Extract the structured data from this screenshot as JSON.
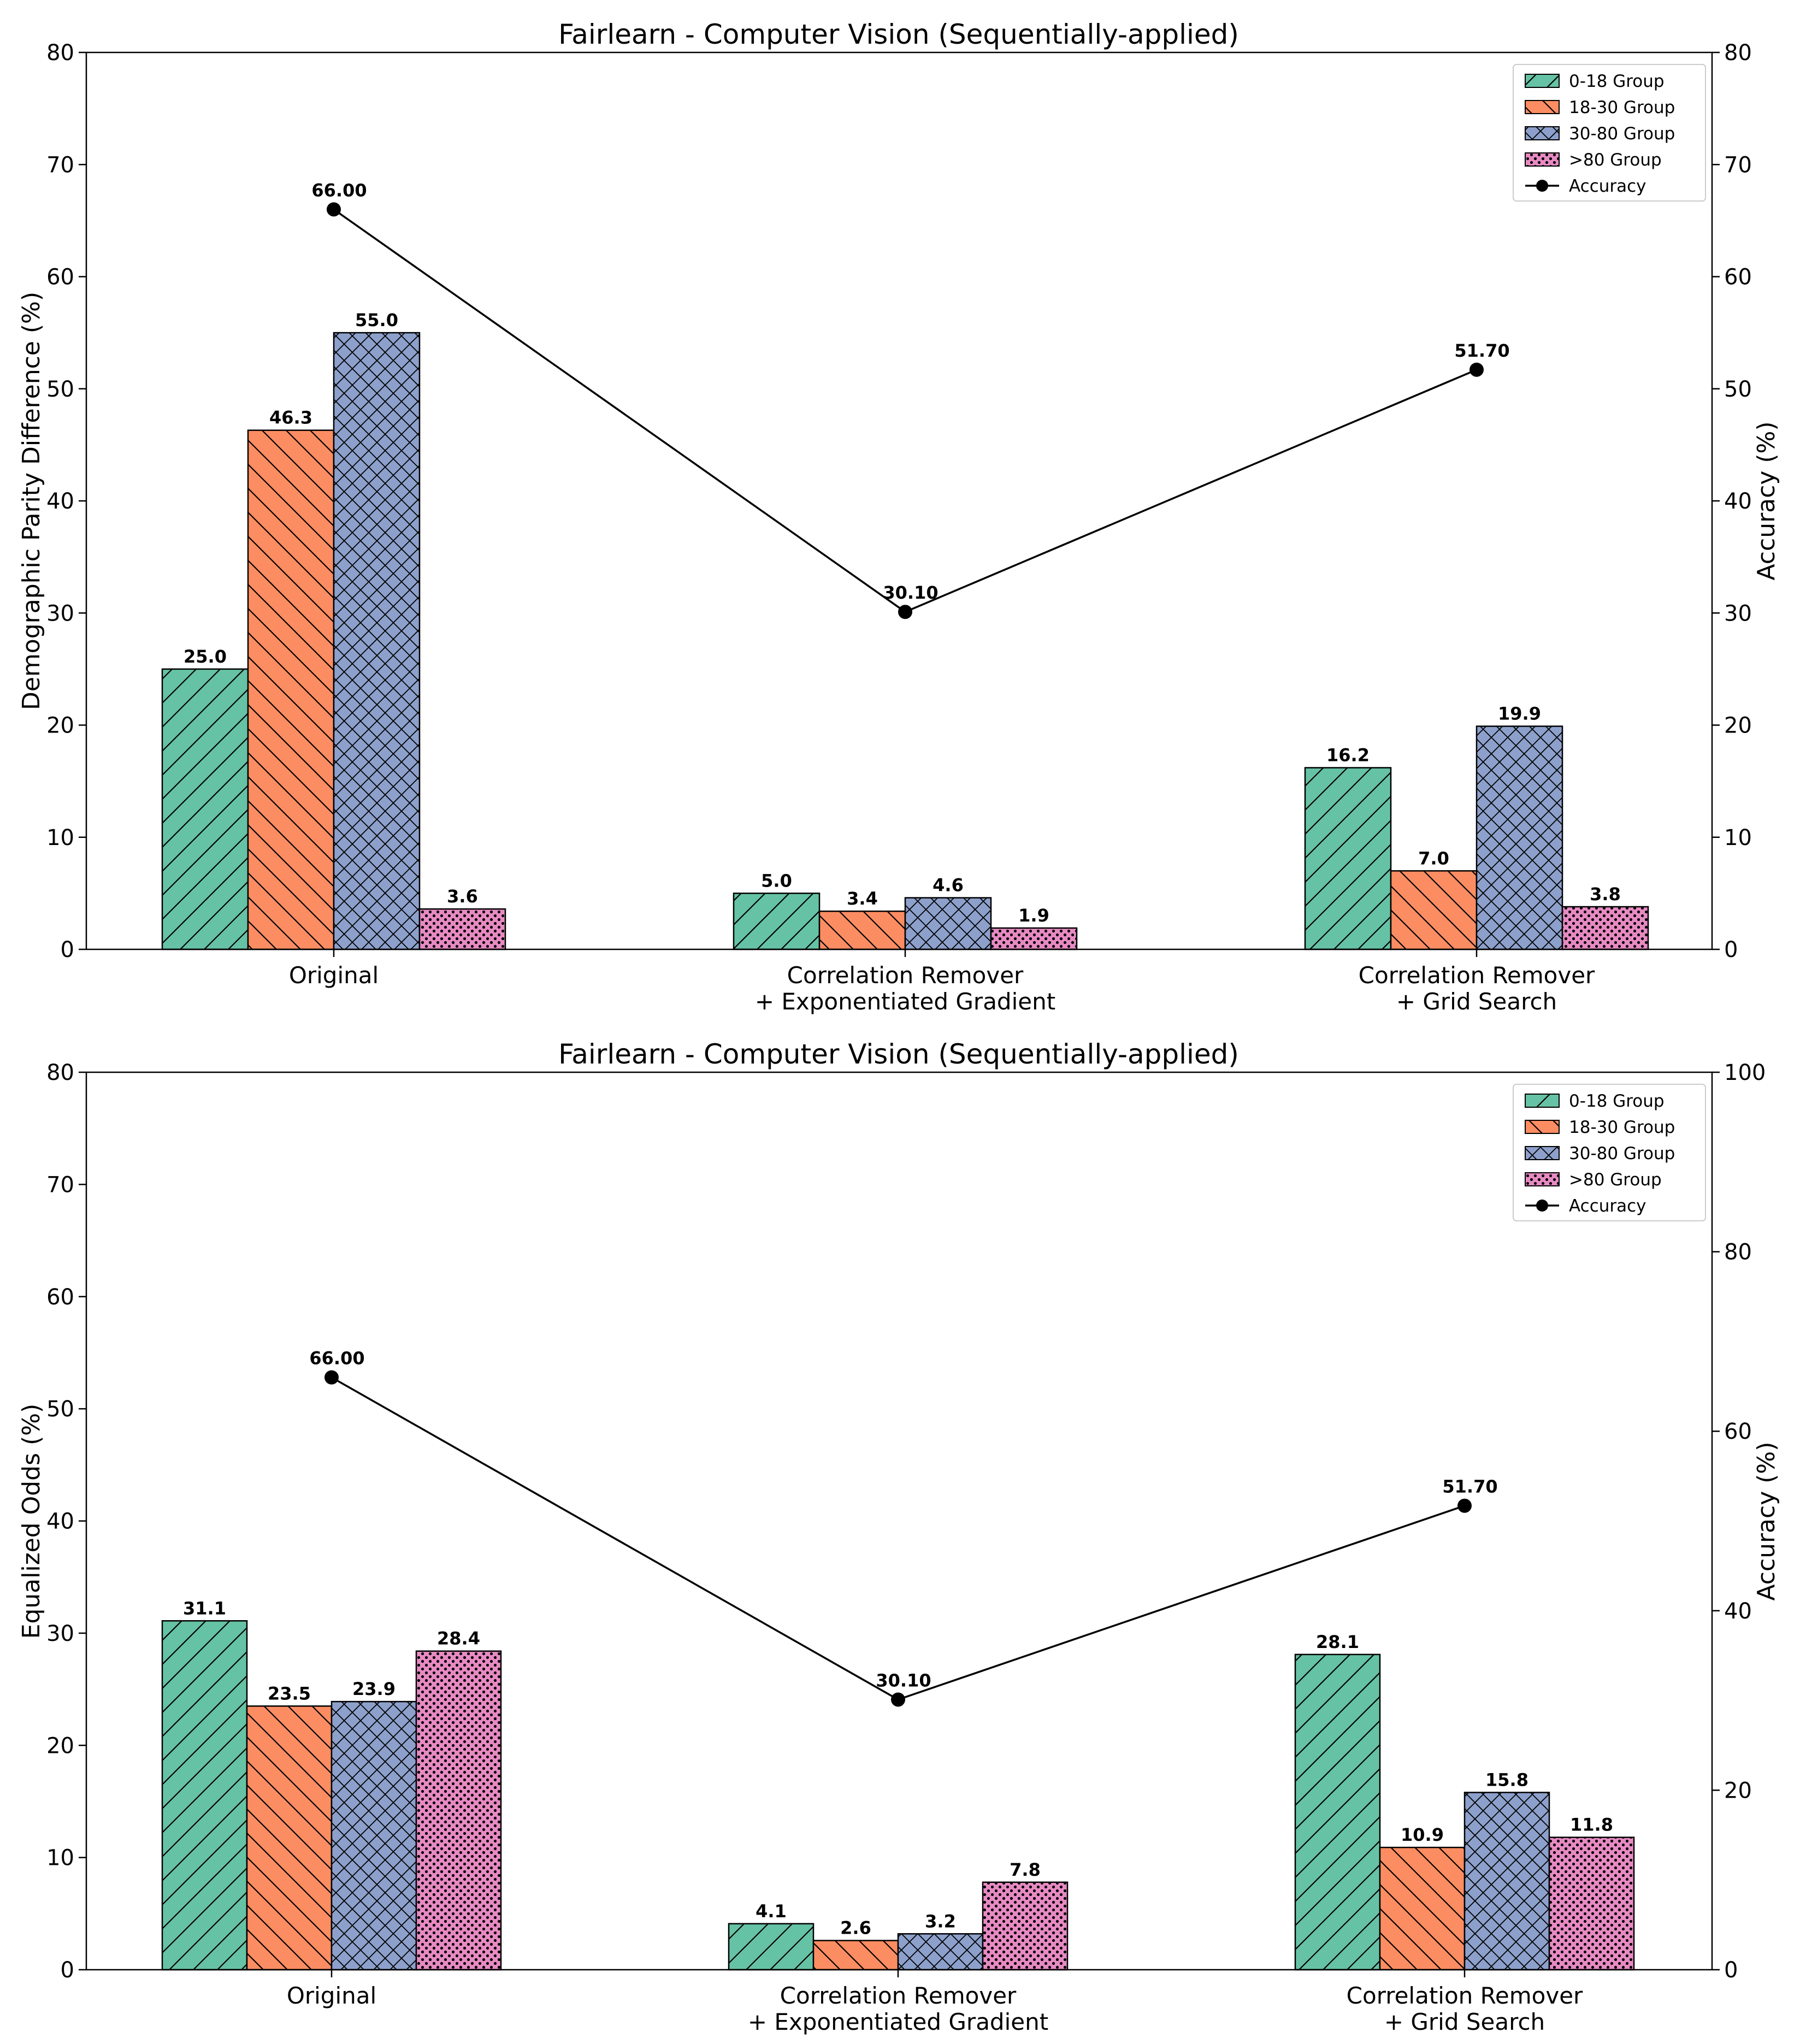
{
  "chart_data": [
    {
      "type": "bar",
      "title": "Fairlearn - Computer Vision (Sequentially-applied)",
      "ylabel": "Demographic Parity Difference (%)",
      "y2label": "Accuracy (%)",
      "ylim": [
        0,
        80
      ],
      "y2lim": [
        0,
        80
      ],
      "yticks": [
        0,
        10,
        20,
        30,
        40,
        50,
        60,
        70,
        80
      ],
      "y2ticks": [
        0,
        10,
        20,
        30,
        40,
        50,
        60,
        70,
        80
      ],
      "categories": [
        [
          "Original"
        ],
        [
          "Correlation Remover",
          "+ Exponentiated Gradient"
        ],
        [
          "Correlation Remover",
          "+ Grid Search"
        ]
      ],
      "series": [
        {
          "name": "0-18 Group",
          "color": "#66c2a5",
          "pattern": "diag",
          "values": [
            25.0,
            5.0,
            16.2
          ],
          "labels": [
            "25.0",
            "5.0",
            "16.2"
          ]
        },
        {
          "name": "18-30 Group",
          "color": "#fc8d62",
          "pattern": "backdiag",
          "values": [
            46.3,
            3.4,
            7.0
          ],
          "labels": [
            "46.3",
            "3.4",
            "7.0"
          ]
        },
        {
          "name": "30-80 Group",
          "color": "#8da0cb",
          "pattern": "cross",
          "values": [
            55.0,
            4.6,
            19.9
          ],
          "labels": [
            "55.0",
            "4.6",
            "19.9"
          ]
        },
        {
          "name": ">80 Group",
          "color": "#e78ac3",
          "pattern": "dots",
          "values": [
            3.6,
            1.9,
            3.8
          ],
          "labels": [
            "3.6",
            "1.9",
            "3.8"
          ]
        }
      ],
      "accuracy": {
        "name": "Accuracy",
        "values": [
          66.0,
          30.1,
          51.7
        ],
        "labels": [
          "66.00",
          "30.10",
          "51.70"
        ]
      },
      "legend_position": "top-right"
    },
    {
      "type": "bar",
      "title": "Fairlearn - Computer Vision (Sequentially-applied)",
      "ylabel": "Equalized Odds (%)",
      "y2label": "Accuracy (%)",
      "ylim": [
        0,
        80
      ],
      "y2lim": [
        0,
        100
      ],
      "yticks": [
        0,
        10,
        20,
        30,
        40,
        50,
        60,
        70,
        80
      ],
      "y2ticks": [
        0,
        20,
        40,
        60,
        80,
        100
      ],
      "categories": [
        [
          "Original"
        ],
        [
          "Correlation Remover",
          "+ Exponentiated Gradient"
        ],
        [
          "Correlation Remover",
          "+ Grid Search"
        ]
      ],
      "series": [
        {
          "name": "0-18 Group",
          "color": "#66c2a5",
          "pattern": "diag",
          "values": [
            31.1,
            4.1,
            28.1
          ],
          "labels": [
            "31.1",
            "4.1",
            "28.1"
          ]
        },
        {
          "name": "18-30 Group",
          "color": "#fc8d62",
          "pattern": "backdiag",
          "values": [
            23.5,
            2.6,
            10.9
          ],
          "labels": [
            "23.5",
            "2.6",
            "10.9"
          ]
        },
        {
          "name": "30-80 Group",
          "color": "#8da0cb",
          "pattern": "cross",
          "values": [
            23.9,
            3.2,
            15.8
          ],
          "labels": [
            "23.9",
            "3.2",
            "15.8"
          ]
        },
        {
          "name": ">80 Group",
          "color": "#e78ac3",
          "pattern": "dots",
          "values": [
            28.4,
            7.8,
            11.8
          ],
          "labels": [
            "28.4",
            "7.8",
            "11.8"
          ]
        }
      ],
      "accuracy": {
        "name": "Accuracy",
        "values": [
          66.0,
          30.1,
          51.7
        ],
        "labels": [
          "66.00",
          "30.10",
          "51.70"
        ]
      },
      "legend_position": "top-right"
    }
  ]
}
